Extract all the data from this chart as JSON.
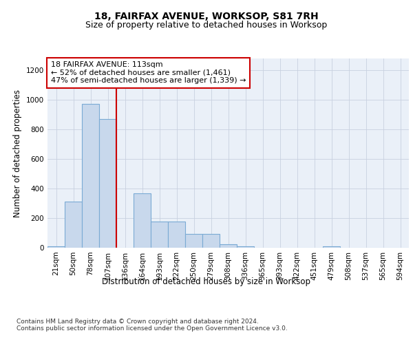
{
  "title": "18, FAIRFAX AVENUE, WORKSOP, S81 7RH",
  "subtitle": "Size of property relative to detached houses in Worksop",
  "xlabel": "Distribution of detached houses by size in Worksop",
  "ylabel": "Number of detached properties",
  "bin_labels": [
    "21sqm",
    "50sqm",
    "78sqm",
    "107sqm",
    "136sqm",
    "164sqm",
    "193sqm",
    "222sqm",
    "250sqm",
    "279sqm",
    "308sqm",
    "336sqm",
    "365sqm",
    "393sqm",
    "422sqm",
    "451sqm",
    "479sqm",
    "508sqm",
    "537sqm",
    "565sqm",
    "594sqm"
  ],
  "bar_heights": [
    10,
    310,
    975,
    870,
    0,
    370,
    175,
    175,
    95,
    95,
    25,
    10,
    0,
    0,
    0,
    0,
    10,
    0,
    0,
    0,
    0
  ],
  "bar_color": "#c8d8ec",
  "bar_edge_color": "#7aaad4",
  "grid_color": "#c8d0e0",
  "background_color": "#eaf0f8",
  "vline_x_idx": 3,
  "vline_color": "#cc0000",
  "annotation_text": "18 FAIRFAX AVENUE: 113sqm\n← 52% of detached houses are smaller (1,461)\n47% of semi-detached houses are larger (1,339) →",
  "annotation_box_color": "#ffffff",
  "annotation_box_edge": "#cc0000",
  "ylim": [
    0,
    1280
  ],
  "yticks": [
    0,
    200,
    400,
    600,
    800,
    1000,
    1200
  ],
  "footer": "Contains HM Land Registry data © Crown copyright and database right 2024.\nContains public sector information licensed under the Open Government Licence v3.0.",
  "title_fontsize": 10,
  "subtitle_fontsize": 9,
  "axis_label_fontsize": 8.5,
  "tick_fontsize": 7.5,
  "annotation_fontsize": 8,
  "footer_fontsize": 6.5
}
